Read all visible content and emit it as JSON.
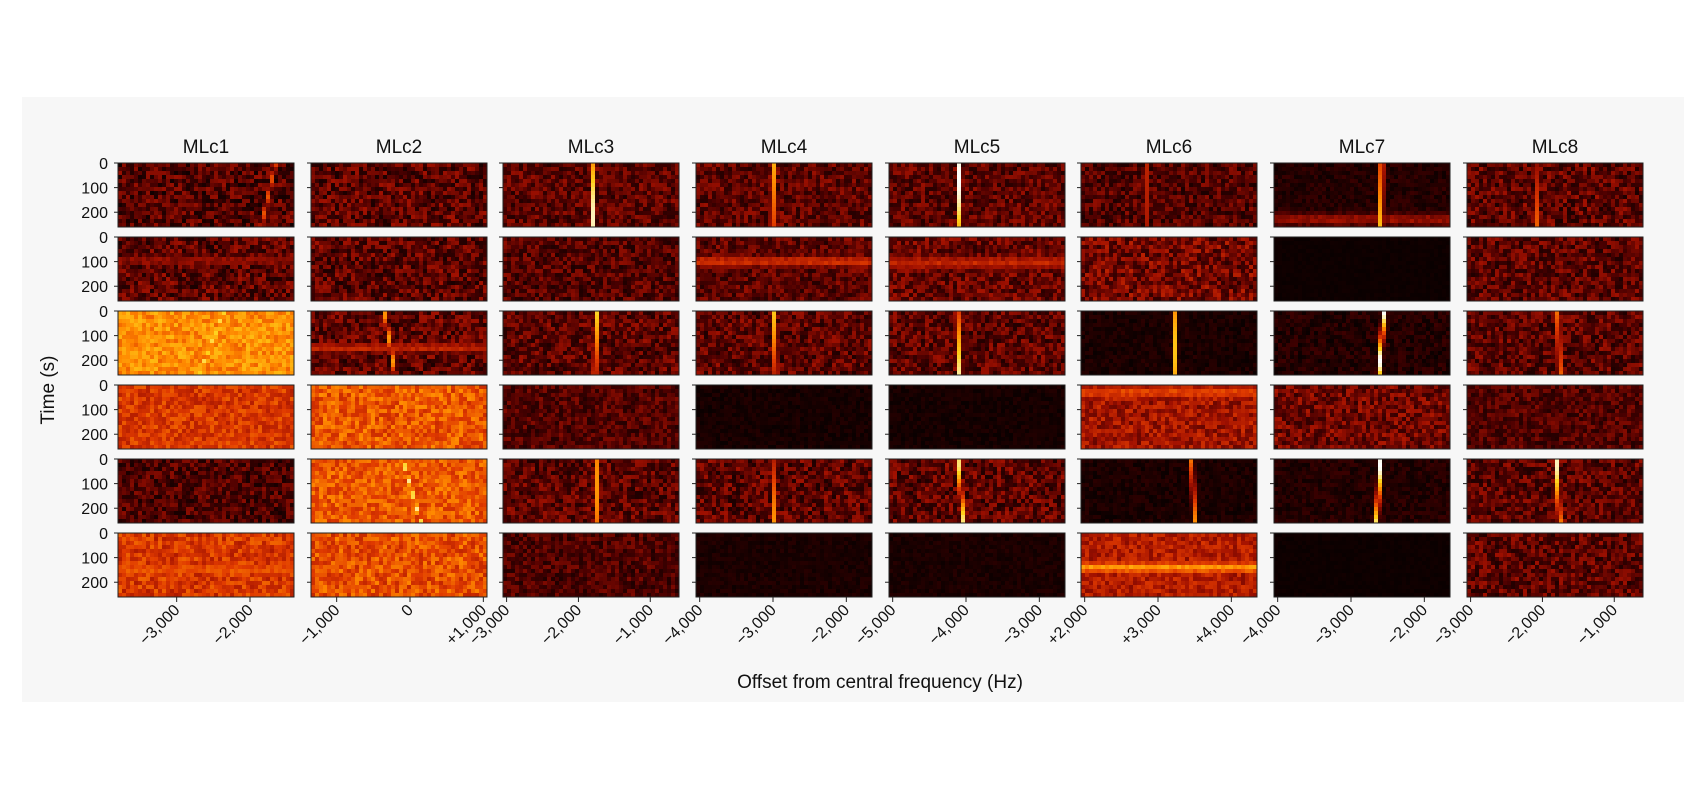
{
  "figure": {
    "ylabel": "Time (s)",
    "xlabel": "Offset from central frequency (Hz)",
    "background": "#f7f7f7"
  },
  "chart_data": {
    "type": "heatmap",
    "columns": [
      "MLc1",
      "MLc2",
      "MLc3",
      "MLc4",
      "MLc5",
      "MLc6",
      "MLc7",
      "MLc8"
    ],
    "rows": 6,
    "yticks": [
      "0",
      "100",
      "200"
    ],
    "ylim": [
      0,
      260
    ],
    "xaxes": [
      {
        "range": [
          -3800,
          -1400
        ],
        "ticks": [
          {
            "v": -3000,
            "label": "−3,000"
          },
          {
            "v": -2000,
            "label": "−2,000"
          }
        ]
      },
      {
        "range": [
          -1350,
          1050
        ],
        "ticks": [
          {
            "v": -1000,
            "label": "−1,000"
          },
          {
            "v": 0,
            "label": "0"
          },
          {
            "v": 1000,
            "label": "+1,000"
          }
        ]
      },
      {
        "range": [
          -3050,
          -600
        ],
        "ticks": [
          {
            "v": -3000,
            "label": "−3,000"
          },
          {
            "v": -2000,
            "label": "−2,000"
          },
          {
            "v": -1000,
            "label": "−1,000"
          }
        ]
      },
      {
        "range": [
          -4050,
          -1650
        ],
        "ticks": [
          {
            "v": -4000,
            "label": "−4,000"
          },
          {
            "v": -3000,
            "label": "−3,000"
          },
          {
            "v": -2000,
            "label": "−2,000"
          }
        ]
      },
      {
        "range": [
          -5050,
          -2650
        ],
        "ticks": [
          {
            "v": -5000,
            "label": "−5,000"
          },
          {
            "v": -4000,
            "label": "−4,000"
          },
          {
            "v": -3000,
            "label": "−3,000"
          }
        ]
      },
      {
        "range": [
          1950,
          4350
        ],
        "ticks": [
          {
            "v": 2000,
            "label": "+2,000"
          },
          {
            "v": 3000,
            "label": "+3,000"
          },
          {
            "v": 4000,
            "label": "+4,000"
          }
        ]
      },
      {
        "range": [
          -4050,
          -1650
        ],
        "ticks": [
          {
            "v": -4000,
            "label": "−4,000"
          },
          {
            "v": -3000,
            "label": "−3,000"
          },
          {
            "v": -2000,
            "label": "−2,000"
          }
        ]
      },
      {
        "range": [
          -3050,
          -600
        ],
        "ticks": [
          {
            "v": -3000,
            "label": "−3,000"
          },
          {
            "v": -2000,
            "label": "−2,000"
          },
          {
            "v": -1000,
            "label": "−1,000"
          }
        ]
      }
    ],
    "colormap": [
      "#000000",
      "#4a0000",
      "#a01000",
      "#e03a00",
      "#ff8800",
      "#ffd21a",
      "#ffffff"
    ],
    "panels": [
      [
        {
          "bg": 0.18,
          "noise": 0.14,
          "signal": {
            "x0": -1650,
            "x1": -1850,
            "level": 0.55
          }
        },
        {
          "bg": 0.2,
          "noise": 0.14
        },
        {
          "bg": 0.2,
          "noise": 0.12,
          "signal": {
            "x0": -1780,
            "x1": -1800,
            "level": 0.95
          }
        },
        {
          "bg": 0.2,
          "noise": 0.12,
          "signal": {
            "x0": -3000,
            "x1": -3010,
            "level": 0.92
          }
        },
        {
          "bg": 0.2,
          "noise": 0.12,
          "signal": {
            "x0": -4100,
            "x1": -4080,
            "level": 1.0
          }
        },
        {
          "bg": 0.18,
          "noise": 0.12,
          "signal": {
            "x0": 2850,
            "x1": 2860,
            "level": 0.4
          }
        },
        {
          "bg": 0.08,
          "noise": 0.05,
          "signal": {
            "x0": -2580,
            "x1": -2590,
            "level": 1.0
          },
          "band": {
            "t": 230,
            "w": 30,
            "level": 0.32
          }
        },
        {
          "bg": 0.2,
          "noise": 0.14,
          "signal": {
            "x0": -2050,
            "x1": -2070,
            "level": 0.6
          }
        }
      ],
      [
        {
          "bg": 0.2,
          "noise": 0.14,
          "band": {
            "t": 95,
            "w": 25,
            "level": 0.3
          }
        },
        {
          "bg": 0.2,
          "noise": 0.14
        },
        {
          "bg": 0.18,
          "noise": 0.12
        },
        {
          "bg": 0.2,
          "noise": 0.12,
          "band": {
            "t": 100,
            "w": 28,
            "level": 0.45
          }
        },
        {
          "bg": 0.22,
          "noise": 0.13,
          "band": {
            "t": 105,
            "w": 35,
            "level": 0.42
          }
        },
        {
          "bg": 0.25,
          "noise": 0.15
        },
        {
          "bg": 0.03,
          "noise": 0.01
        },
        {
          "bg": 0.2,
          "noise": 0.13
        }
      ],
      [
        {
          "bg": 0.68,
          "noise": 0.1,
          "signal": {
            "x0": -2350,
            "x1": -2700,
            "level": 0.88
          }
        },
        {
          "bg": 0.2,
          "noise": 0.14,
          "signal": {
            "x0": -350,
            "x1": -200,
            "level": 0.7
          },
          "band": {
            "t": 150,
            "w": 25,
            "level": 0.42
          }
        },
        {
          "bg": 0.2,
          "noise": 0.13,
          "signal": {
            "x0": -1750,
            "x1": -1770,
            "level": 0.92
          }
        },
        {
          "bg": 0.2,
          "noise": 0.13,
          "signal": {
            "x0": -2980,
            "x1": -2960,
            "level": 0.85
          }
        },
        {
          "bg": 0.2,
          "noise": 0.13,
          "signal": {
            "x0": -4120,
            "x1": -4100,
            "level": 0.95
          }
        },
        {
          "bg": 0.06,
          "noise": 0.04,
          "signal": {
            "x0": 3220,
            "x1": 3240,
            "level": 0.8
          }
        },
        {
          "bg": 0.08,
          "noise": 0.06,
          "signal": {
            "x0": -2550,
            "x1": -2620,
            "level": 1.0
          }
        },
        {
          "bg": 0.2,
          "noise": 0.13,
          "signal": {
            "x0": -1780,
            "x1": -1760,
            "level": 0.85
          }
        }
      ],
      [
        {
          "bg": 0.48,
          "noise": 0.1
        },
        {
          "bg": 0.56,
          "noise": 0.12
        },
        {
          "bg": 0.18,
          "noise": 0.1
        },
        {
          "bg": 0.05,
          "noise": 0.03
        },
        {
          "bg": 0.05,
          "noise": 0.03
        },
        {
          "bg": 0.34,
          "noise": 0.12,
          "band": {
            "t": 30,
            "w": 35,
            "level": 0.52
          }
        },
        {
          "bg": 0.24,
          "noise": 0.13
        },
        {
          "bg": 0.18,
          "noise": 0.1
        }
      ],
      [
        {
          "bg": 0.17,
          "noise": 0.12
        },
        {
          "bg": 0.56,
          "noise": 0.11,
          "signal": {
            "x0": -100,
            "x1": 150,
            "level": 0.92
          }
        },
        {
          "bg": 0.2,
          "noise": 0.13,
          "signal": {
            "x0": -1750,
            "x1": -1730,
            "level": 0.7
          }
        },
        {
          "bg": 0.2,
          "noise": 0.14,
          "signal": {
            "x0": -3010,
            "x1": -2990,
            "level": 0.7
          }
        },
        {
          "bg": 0.2,
          "noise": 0.14,
          "signal": {
            "x0": -4100,
            "x1": -4040,
            "level": 0.9
          }
        },
        {
          "bg": 0.06,
          "noise": 0.04,
          "signal": {
            "x0": 3460,
            "x1": 3500,
            "level": 0.7
          }
        },
        {
          "bg": 0.08,
          "noise": 0.05,
          "signal": {
            "x0": -2600,
            "x1": -2650,
            "level": 1.0
          }
        },
        {
          "bg": 0.2,
          "noise": 0.13,
          "signal": {
            "x0": -1800,
            "x1": -1760,
            "level": 0.95
          }
        }
      ],
      [
        {
          "bg": 0.48,
          "noise": 0.11,
          "band": {
            "t": 150,
            "w": 40,
            "level": 0.55
          }
        },
        {
          "bg": 0.54,
          "noise": 0.12
        },
        {
          "bg": 0.17,
          "noise": 0.1
        },
        {
          "bg": 0.06,
          "noise": 0.03
        },
        {
          "bg": 0.06,
          "noise": 0.03
        },
        {
          "bg": 0.38,
          "noise": 0.1,
          "band": {
            "t": 140,
            "w": 30,
            "level": 0.7
          }
        },
        {
          "bg": 0.03,
          "noise": 0.01
        },
        {
          "bg": 0.2,
          "noise": 0.13
        }
      ]
    ]
  }
}
